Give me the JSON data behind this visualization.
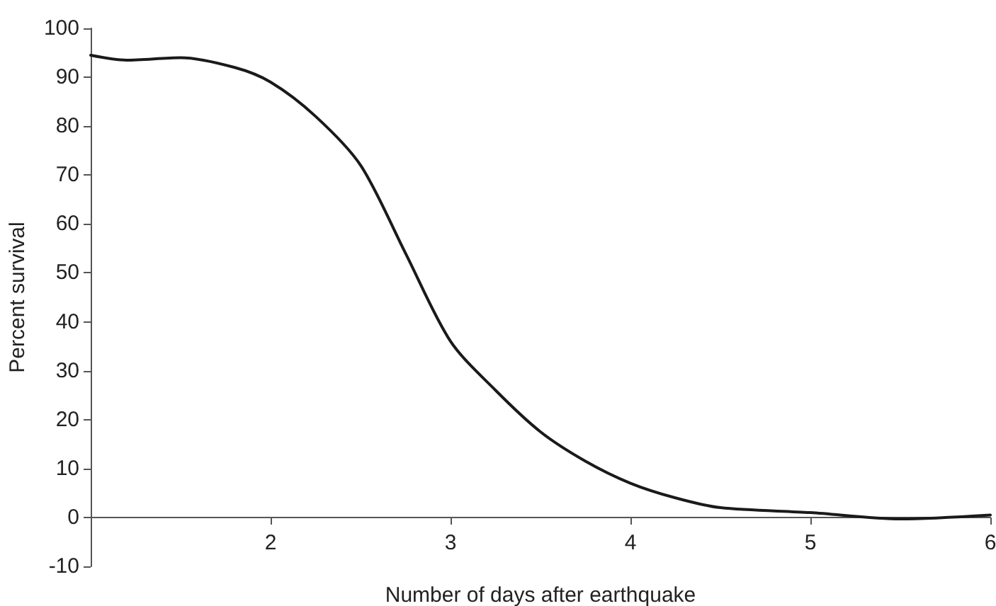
{
  "chart_data": {
    "type": "line",
    "xlabel": "Number of days after earthquake",
    "ylabel": "Percent survival",
    "series": [
      {
        "color": "#1a1a1a",
        "x": [
          1,
          1.2,
          1.5,
          1.8,
          2,
          2.25,
          2.5,
          2.75,
          3,
          3.25,
          3.5,
          3.75,
          4,
          4.25,
          4.5,
          5,
          5.5,
          6
        ],
        "values": [
          94.5,
          93.5,
          94,
          92,
          89,
          82,
          72,
          54,
          36,
          26,
          17.5,
          11.5,
          7,
          4,
          2,
          1,
          -0.3,
          0.5
        ]
      }
    ],
    "xlim": [
      1,
      6
    ],
    "xticks": [
      2,
      3,
      4,
      5,
      6
    ],
    "ylim": [
      -10,
      100
    ],
    "yticks": [
      -10,
      0,
      10,
      20,
      30,
      40,
      50,
      60,
      70,
      80,
      90,
      100
    ],
    "marker": "none",
    "line_style": "solid"
  }
}
